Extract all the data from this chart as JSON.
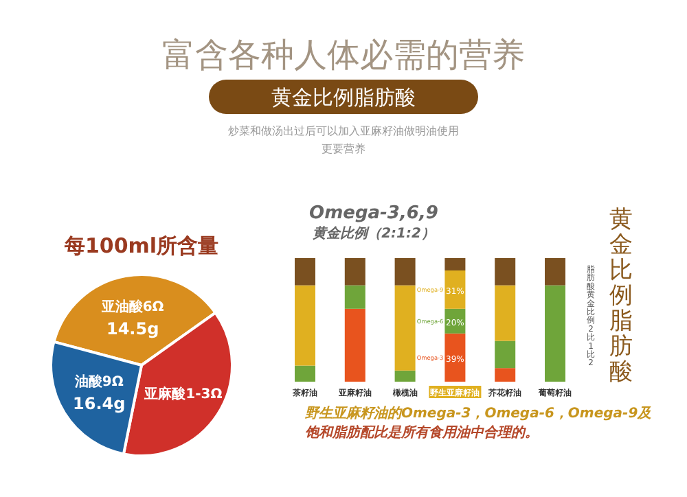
{
  "chart_data": [
    {
      "type": "other",
      "title": "富含各种人体必需的营养",
      "subtitle": "黄金比例脂肪酸",
      "annotations": [
        "炒菜和做汤出过后可以加入亚麻籽油做明油使用",
        "更要营养"
      ]
    },
    {
      "type": "pie",
      "title": "每100ml所含量",
      "categories": [
        "亚油酸6Ω",
        "亚麻酸1-3Ω",
        "油酸9Ω"
      ],
      "values": [
        36,
        38,
        26
      ],
      "colors": [
        "#d98e1e",
        "#d0302a",
        "#1f63a0"
      ],
      "annotations": [
        {
          "text": "14.5g",
          "x": "亚油酸6Ω"
        },
        {
          "text": "16.4g",
          "x": "油酸9Ω"
        }
      ]
    },
    {
      "type": "bar",
      "stacked": true,
      "title": "Omega-3,6,9",
      "subtitle": "黄金比例（2:1:2）",
      "categories": [
        "茶籽油",
        "亚麻籽油",
        "橄榄油",
        "野生亚麻籽油",
        "芥花籽油",
        "葡萄籽油"
      ],
      "ylim": [
        0,
        100
      ],
      "tick_labels": false,
      "series": [
        {
          "name": "Omega-3",
          "color": "#e8541e",
          "values": [
            0,
            59,
            0,
            39,
            11,
            0
          ],
          "value_labels": [
            null,
            null,
            null,
            "39%",
            null,
            null
          ]
        },
        {
          "name": "Omega-6",
          "color": "#6fa53a",
          "values": [
            13,
            19,
            9,
            20,
            22,
            78
          ],
          "value_labels": [
            null,
            null,
            null,
            "20%",
            null,
            null
          ]
        },
        {
          "name": "Omega-9",
          "color": "#e0b020",
          "values": [
            65,
            0,
            69,
            31,
            45,
            0
          ],
          "value_labels": [
            null,
            null,
            null,
            "31%",
            null,
            null
          ]
        },
        {
          "color": "#7a5020",
          "values": [
            22,
            22,
            22,
            10,
            22,
            22
          ]
        }
      ],
      "annotations": [
        "野生亚麻籽油的Omega-3，Omega-6，Omega-9及",
        "饱和脂肪配比是所有食用油中合理的。",
        "脂肪酸黄金比例2比1比2",
        "黄金比例脂肪酸"
      ]
    }
  ]
}
